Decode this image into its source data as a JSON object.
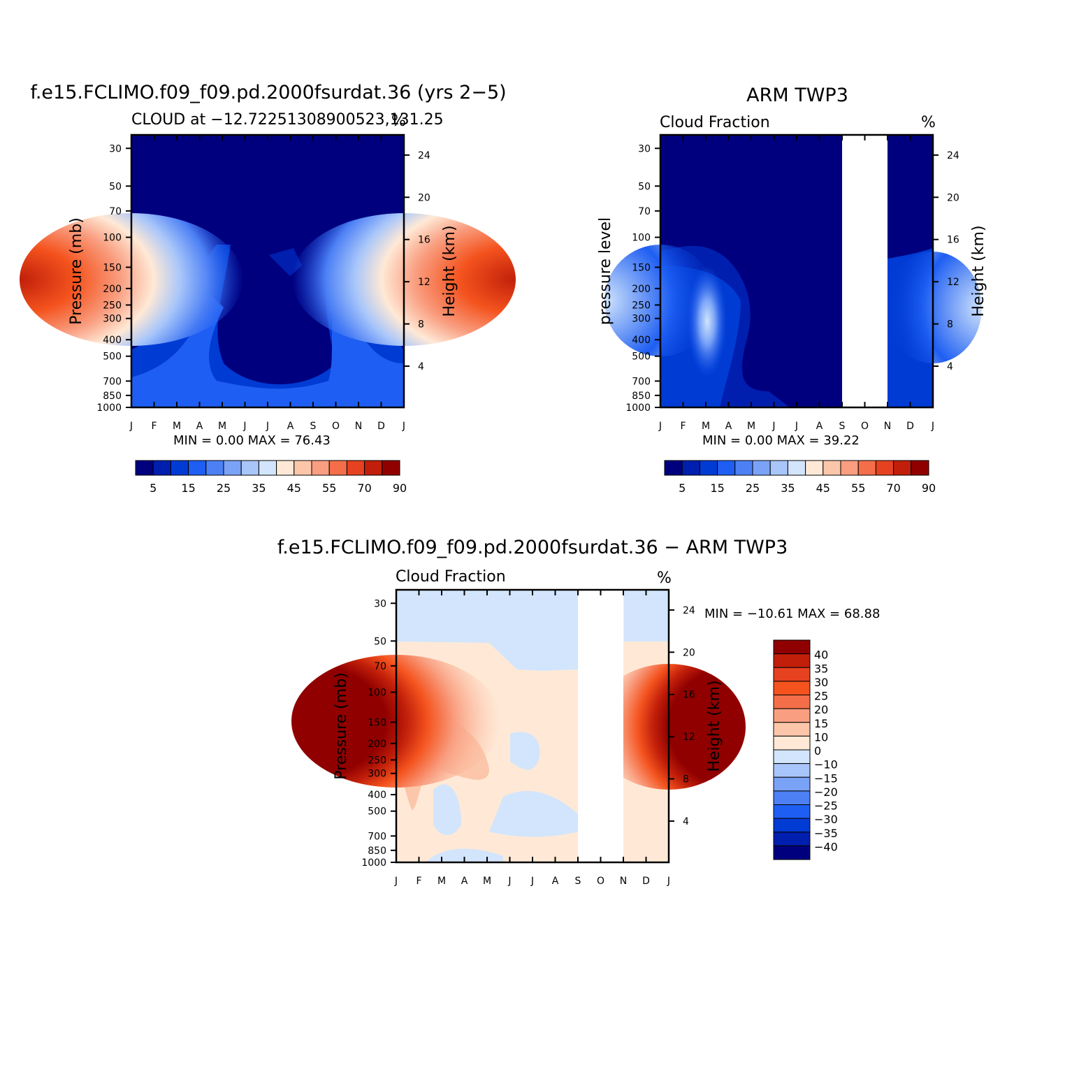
{
  "chart_data": [
    {
      "type": "heatmap",
      "title": "f.e15.FCLIMO.f09_f09.pd.2000fsurdat.36 (yrs 2−5)",
      "subtitle": "CLOUD at −12.72251308900523,131.25",
      "units": "%",
      "xlabel": "",
      "ylabel": "Pressure (mb)",
      "ylabel_right": "Height (km)",
      "x_ticks": [
        "J",
        "F",
        "M",
        "A",
        "M",
        "J",
        "J",
        "A",
        "S",
        "O",
        "N",
        "D",
        "J"
      ],
      "y_ticks": [
        30,
        50,
        70,
        100,
        150,
        200,
        250,
        300,
        400,
        500,
        700,
        850,
        1000
      ],
      "y_right_ticks": [
        24,
        20,
        16,
        12,
        8,
        4
      ],
      "y_scale": "log",
      "ylim": [
        1000,
        25
      ],
      "stats": "MIN =    0.00  MAX =   76.43",
      "colorbar": {
        "orientation": "horizontal",
        "labels": [
          "5",
          "15",
          "25",
          "35",
          "45",
          "55",
          "70",
          "90"
        ],
        "colors": [
          "#00007f",
          "#001fae",
          "#003bd4",
          "#1e5ef2",
          "#4d80f5",
          "#7aa3f7",
          "#a8c6fa",
          "#d2e5fc",
          "#ffe9d6",
          "#fcc6aa",
          "#f99e80",
          "#f46e49",
          "#e64120",
          "#c11f0a",
          "#900000"
        ]
      },
      "blobs": [
        {
          "x": 0.0,
          "y": 0.17,
          "value": 70
        },
        {
          "x": 12.0,
          "y": 0.17,
          "value": 70
        },
        {
          "x": 6.5,
          "y": 0.05,
          "value": 4
        }
      ]
    },
    {
      "type": "heatmap",
      "title": "ARM TWP3",
      "subtitle": "Cloud Fraction",
      "units": "%",
      "xlabel": "",
      "ylabel": "pressure level",
      "ylabel_right": "Height (km)",
      "x_ticks": [
        "J",
        "F",
        "M",
        "A",
        "M",
        "J",
        "J",
        "A",
        "S",
        "O",
        "N",
        "D",
        "J"
      ],
      "y_ticks": [
        30,
        50,
        70,
        100,
        150,
        200,
        250,
        300,
        400,
        500,
        700,
        850,
        1000
      ],
      "y_right_ticks": [
        24,
        20,
        16,
        12,
        8,
        4
      ],
      "y_scale": "log",
      "ylim": [
        1000,
        25
      ],
      "missing_months": [
        "S",
        "O",
        "N"
      ],
      "stats": "MIN =    0.00  MAX =   39.22",
      "colorbar": {
        "orientation": "horizontal",
        "labels": [
          "5",
          "15",
          "25",
          "35",
          "45",
          "55",
          "70",
          "90"
        ],
        "colors": [
          "#00007f",
          "#001fae",
          "#003bd4",
          "#1e5ef2",
          "#4d80f5",
          "#7aa3f7",
          "#a8c6fa",
          "#d2e5fc",
          "#ffe9d6",
          "#fcc6aa",
          "#f99e80",
          "#f46e49",
          "#e64120",
          "#c11f0a",
          "#900000"
        ]
      }
    },
    {
      "type": "heatmap",
      "title": "f.e15.FCLIMO.f09_f09.pd.2000fsurdat.36 − ARM TWP3",
      "subtitle": "Cloud Fraction",
      "units": "%",
      "xlabel": "",
      "ylabel": "Pressure (mb)",
      "ylabel_right": "Height (km)",
      "x_ticks": [
        "J",
        "F",
        "M",
        "A",
        "M",
        "J",
        "J",
        "A",
        "S",
        "O",
        "N",
        "D",
        "J"
      ],
      "y_ticks": [
        30,
        50,
        70,
        100,
        150,
        200,
        250,
        300,
        400,
        500,
        700,
        850,
        1000
      ],
      "y_right_ticks": [
        24,
        20,
        16,
        12,
        8,
        4
      ],
      "y_scale": "log",
      "ylim": [
        1000,
        25
      ],
      "missing_months": [
        "S",
        "O",
        "N"
      ],
      "stats": "MIN = −10.61  MAX =   68.88",
      "colorbar": {
        "orientation": "vertical",
        "labels": [
          "40",
          "35",
          "30",
          "25",
          "20",
          "15",
          "10",
          "0",
          "−10",
          "−15",
          "−20",
          "−25",
          "−30",
          "−35",
          "−40"
        ],
        "colors": [
          "#900000",
          "#c11f0a",
          "#e64120",
          "#f4531e",
          "#f46e49",
          "#f99e80",
          "#fcc6aa",
          "#ffe9d6",
          "#d2e5fc",
          "#a8c6fa",
          "#7aa3f7",
          "#4d80f5",
          "#1e5ef2",
          "#003bd4",
          "#001fae",
          "#00007f"
        ]
      }
    }
  ]
}
